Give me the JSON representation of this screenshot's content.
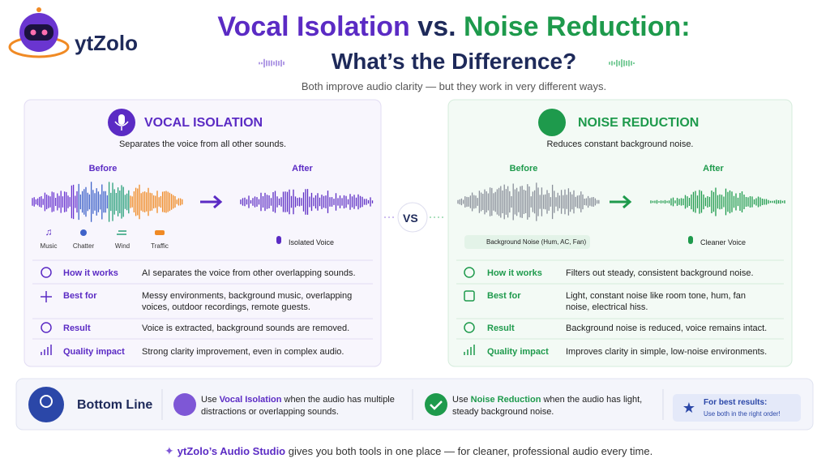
{
  "brand": "ytZolo",
  "header": {
    "title_part1": "Vocal Isolation",
    "title_part2": "vs.",
    "title_part3": "Noise Reduction:",
    "title_line2": "What’s the Difference?",
    "subtitle": "Both improve audio clarity — but they work in very different ways."
  },
  "vocal": {
    "title": "VOCAL ISOLATION",
    "description": "Separates the voice from all other sounds.",
    "before": "Before",
    "after": "After",
    "sources": [
      "Music",
      "Chatter",
      "Wind",
      "Traffic"
    ],
    "result_label": "Isolated Voice",
    "rows": [
      {
        "label": "How it works",
        "text": "AI separates the voice from other overlapping sounds."
      },
      {
        "label": "Best for",
        "text": "Messy environments, background music, overlapping voices, outdoor recordings, remote guests."
      },
      {
        "label": "Result",
        "text": "Voice is extracted, background sounds are removed."
      },
      {
        "label": "Quality impact",
        "text": "Strong clarity improvement, even in complex audio."
      }
    ]
  },
  "vs": "VS",
  "noise": {
    "title": "NOISE REDUCTION",
    "description": "Reduces constant background noise.",
    "before": "Before",
    "after": "After",
    "source_label": "Background Noise (Hum, AC, Fan)",
    "result_label": "Cleaner Voice",
    "rows": [
      {
        "label": "How it works",
        "text": "Filters out steady, consistent background noise."
      },
      {
        "label": "Best for",
        "text": "Light, constant noise like room tone, hum, fan noise, electrical hiss."
      },
      {
        "label": "Result",
        "text": "Background noise is reduced, voice remains intact."
      },
      {
        "label": "Quality impact",
        "text": "Improves clarity in simple, low-noise environments."
      }
    ]
  },
  "bottom_line": {
    "title": "Bottom Line",
    "vocal": {
      "lead": "Use",
      "highlight": "Vocal Isolation",
      "rest": "when the audio has multiple distractions or overlapping sounds."
    },
    "noise": {
      "lead": "Use",
      "highlight": "Noise Reduction",
      "rest": "when the audio has light, steady background noise."
    },
    "tip_title": "For best results:",
    "tip_text": "Use both in the right order!"
  },
  "footer": {
    "highlight": "ytZolo’s Audio Studio",
    "rest": "gives you both tools in one place — for cleaner, professional audio every time."
  }
}
